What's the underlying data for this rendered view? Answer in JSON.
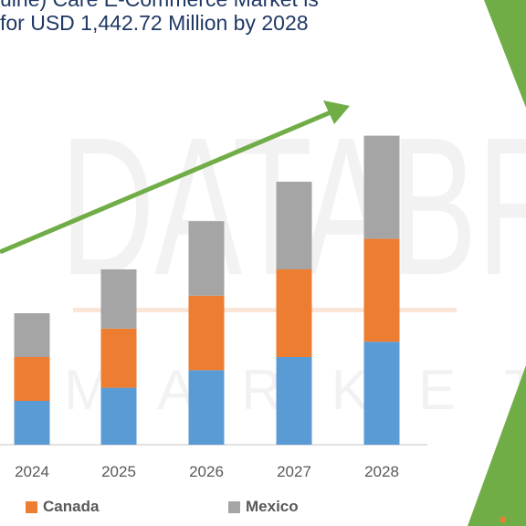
{
  "title": {
    "line1": "uine) Care E-Commerce Market is",
    "line2": "for USD 1,442.72 Million by 2028"
  },
  "watermark": {
    "line1": "DATABR",
    "line2": "M A R K E T"
  },
  "colors": {
    "series_a": "#5b9bd5",
    "canada": "#ed7d31",
    "mexico": "#a5a5a5",
    "arrow": "#70ad47",
    "accent_green": "#70ad47",
    "title": "#1f3864",
    "axis": "#d9d9d9",
    "tick_text": "#595959"
  },
  "chart_data": {
    "type": "bar",
    "stacked": true,
    "categories": [
      "2024",
      "2025",
      "2026",
      "2027",
      "2028"
    ],
    "series": [
      {
        "name": "",
        "color": "#5b9bd5",
        "values": [
          10,
          13,
          17,
          20,
          23.5
        ]
      },
      {
        "name": "Canada",
        "color": "#ed7d31",
        "values": [
          10,
          13.5,
          17,
          20,
          23.5
        ]
      },
      {
        "name": "Mexico",
        "color": "#a5a5a5",
        "values": [
          10,
          13.5,
          17,
          20,
          23.5
        ]
      }
    ],
    "ylim": [
      0,
      75
    ],
    "grid": false,
    "legend": "bottom",
    "trend_arrow": true
  },
  "legend": {
    "items": [
      {
        "label": "Canada",
        "color": "#ed7d31"
      },
      {
        "label": "Mexico",
        "color": "#a5a5a5"
      }
    ]
  }
}
